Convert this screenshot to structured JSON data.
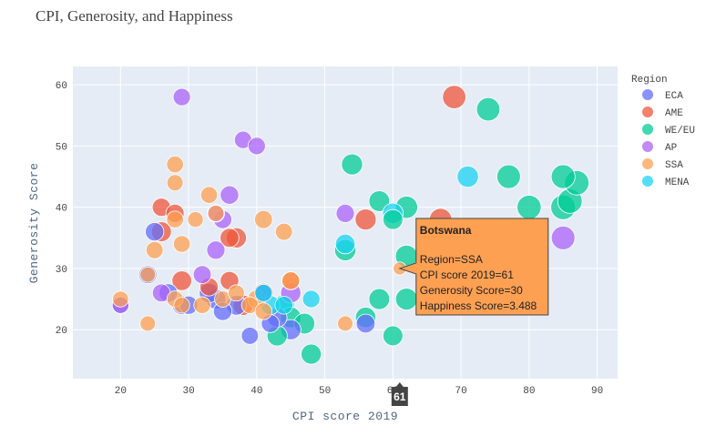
{
  "chart_data": {
    "type": "scatter",
    "title": "CPI, Generosity, and Happiness",
    "xlabel": "CPI score 2019",
    "ylabel": "Generosity Score",
    "xlim": [
      13,
      93
    ],
    "ylim": [
      12,
      63
    ],
    "xticks": [
      20,
      30,
      40,
      50,
      60,
      70,
      80,
      90
    ],
    "yticks": [
      20,
      30,
      40,
      50,
      60
    ],
    "grid": true,
    "legend": {
      "title": "Region",
      "position": "right"
    },
    "series": [
      {
        "name": "ECA",
        "color": "#636efa",
        "points": [
          [
            20,
            24,
            4.7
          ],
          [
            24,
            29,
            5.2
          ],
          [
            25,
            36,
            5.4
          ],
          [
            29,
            24,
            5.5
          ],
          [
            30,
            24,
            5.3
          ],
          [
            33,
            26,
            5.8
          ],
          [
            34,
            25,
            5.9
          ],
          [
            35,
            23,
            5.4
          ],
          [
            37,
            24,
            5.9
          ],
          [
            39,
            19,
            4.9
          ],
          [
            42,
            21,
            5.2
          ],
          [
            43,
            22,
            5.8
          ],
          [
            45,
            20,
            6.0
          ],
          [
            56,
            21,
            5.5
          ],
          [
            41,
            26,
            5.0
          ],
          [
            27,
            26,
            5.4
          ]
        ]
      },
      {
        "name": "AME",
        "color": "#ef553b",
        "points": [
          [
            26,
            40,
            5.3
          ],
          [
            26,
            36,
            5.9
          ],
          [
            28,
            39,
            5.3
          ],
          [
            29,
            28,
            5.8
          ],
          [
            33,
            27,
            5.3
          ],
          [
            36,
            35,
            5.5
          ],
          [
            37,
            35,
            6.0
          ],
          [
            36,
            28,
            5.4
          ],
          [
            38,
            24,
            6.0
          ],
          [
            41,
            26,
            5.8
          ],
          [
            45,
            28,
            5.3
          ],
          [
            56,
            38,
            6.3
          ],
          [
            67,
            38,
            6.8
          ],
          [
            69,
            58,
            7.1
          ]
        ]
      },
      {
        "name": "WE/EU",
        "color": "#00cc96",
        "points": [
          [
            43,
            19,
            6.0
          ],
          [
            44,
            24,
            6.2
          ],
          [
            45,
            22,
            6.2
          ],
          [
            47,
            21,
            6.2
          ],
          [
            48,
            16,
            6.0
          ],
          [
            53,
            33,
            6.4
          ],
          [
            54,
            47,
            6.3
          ],
          [
            56,
            22,
            6.1
          ],
          [
            58,
            25,
            6.2
          ],
          [
            58,
            41,
            6.2
          ],
          [
            60,
            38,
            5.9
          ],
          [
            60,
            19,
            5.9
          ],
          [
            62,
            25,
            6.6
          ],
          [
            62,
            32,
            6.7
          ],
          [
            74,
            56,
            7.1
          ],
          [
            77,
            45,
            7.2
          ],
          [
            80,
            40,
            7.4
          ],
          [
            85,
            45,
            7.3
          ],
          [
            85,
            40,
            7.6
          ],
          [
            86,
            41,
            7.5
          ],
          [
            87,
            44,
            7.5
          ],
          [
            62,
            40,
            6.7
          ]
        ]
      },
      {
        "name": "AP",
        "color": "#ab63fa",
        "points": [
          [
            20,
            24,
            4.7
          ],
          [
            26,
            26,
            5.2
          ],
          [
            29,
            58,
            5.0
          ],
          [
            32,
            29,
            5.2
          ],
          [
            34,
            33,
            5.3
          ],
          [
            35,
            38,
            5.3
          ],
          [
            36,
            42,
            5.4
          ],
          [
            38,
            51,
            5.0
          ],
          [
            40,
            50,
            5.0
          ],
          [
            45,
            26,
            6.0
          ],
          [
            53,
            39,
            5.3
          ],
          [
            85,
            35,
            7.2
          ],
          [
            34,
            39,
            5.0
          ]
        ]
      },
      {
        "name": "SSA",
        "color": "#fea052",
        "points": [
          [
            20,
            25,
            4.5
          ],
          [
            24,
            21,
            4.3
          ],
          [
            24,
            29,
            4.3
          ],
          [
            25,
            33,
            4.9
          ],
          [
            28,
            47,
            4.8
          ],
          [
            28,
            44,
            4.6
          ],
          [
            28,
            38,
            4.8
          ],
          [
            28,
            25,
            4.6
          ],
          [
            29,
            34,
            4.8
          ],
          [
            29,
            24,
            4.5
          ],
          [
            31,
            38,
            4.4
          ],
          [
            32,
            24,
            4.8
          ],
          [
            33,
            42,
            4.8
          ],
          [
            34,
            39,
            4.6
          ],
          [
            35,
            25,
            4.6
          ],
          [
            37,
            26,
            4.6
          ],
          [
            39,
            24,
            4.8
          ],
          [
            40,
            25,
            5.2
          ],
          [
            41,
            23,
            4.8
          ],
          [
            41,
            38,
            5.2
          ],
          [
            44,
            36,
            4.9
          ],
          [
            45,
            28,
            5.1
          ],
          [
            53,
            21,
            4.3
          ],
          [
            61,
            30,
            3.488
          ]
        ]
      },
      {
        "name": "MENA",
        "color": "#19d3f3",
        "points": [
          [
            41,
            26,
            5.0
          ],
          [
            42,
            24,
            5.6
          ],
          [
            44,
            24,
            5.2
          ],
          [
            48,
            25,
            5.0
          ],
          [
            53,
            34,
            5.8
          ],
          [
            60,
            39,
            6.1
          ],
          [
            71,
            45,
            6.4
          ]
        ]
      }
    ],
    "hover": {
      "name": "Botswana",
      "point": [
        61,
        30
      ],
      "lines": [
        "Region=SSA",
        "CPI score 2019=61",
        "Generosity Score=30",
        "Happiness Score=3.488"
      ],
      "spike_label": "61",
      "color": "#fea052"
    }
  }
}
